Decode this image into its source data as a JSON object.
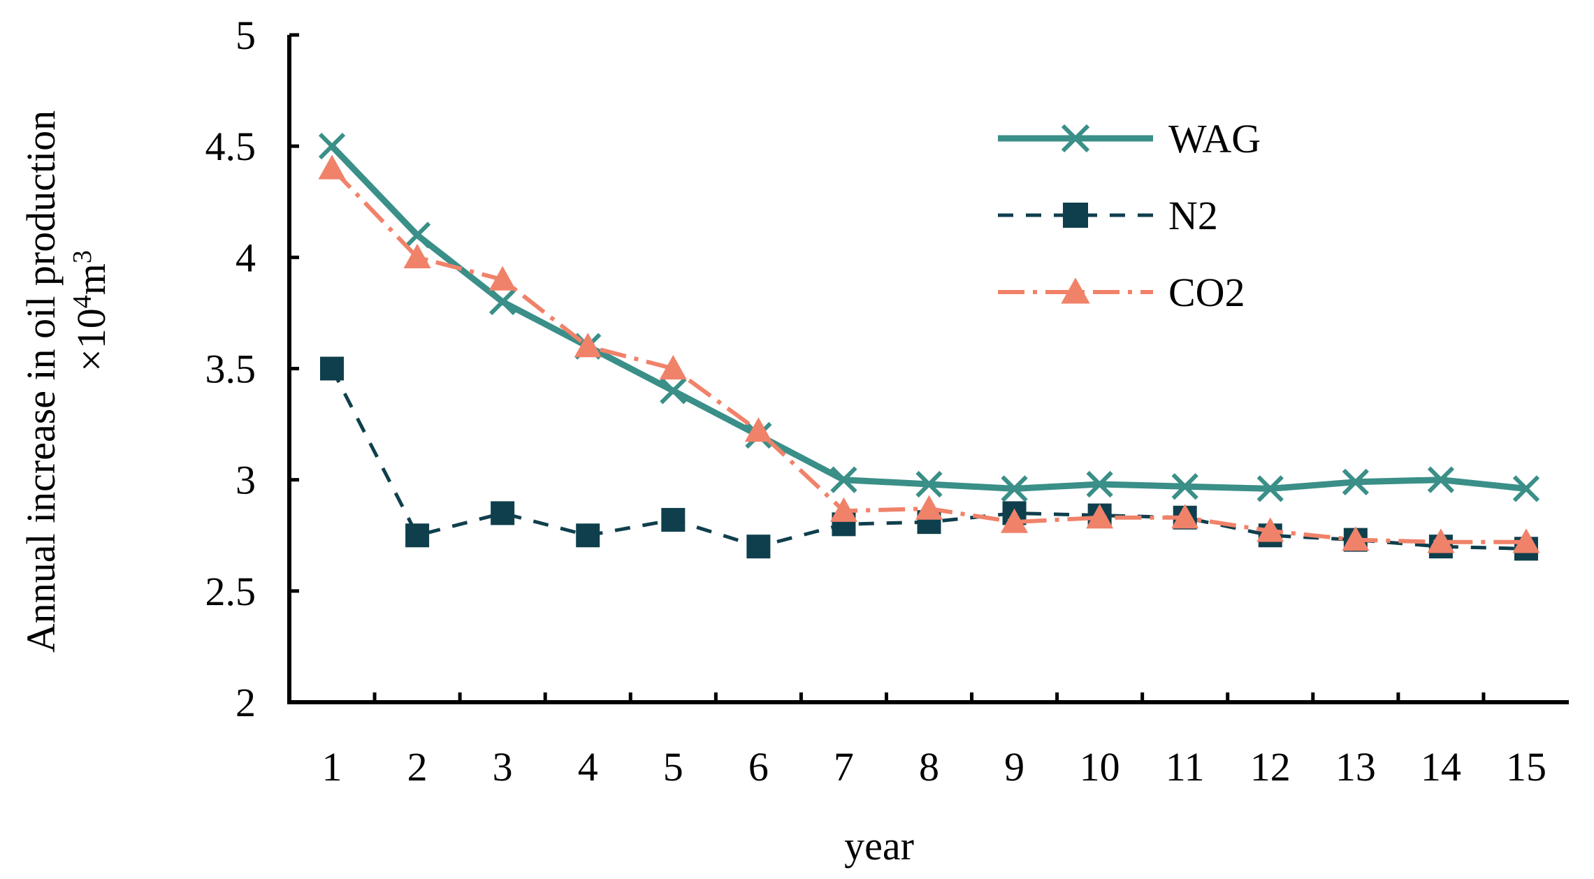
{
  "chart_data": {
    "type": "line",
    "title": "",
    "xlabel": "year",
    "ylabel": {
      "line1": "Annual increase in oil production",
      "line2_prefix": "×10",
      "line2_sup1": "4",
      "line2_mid": "m",
      "line2_sup2": "3"
    },
    "x": [
      1,
      2,
      3,
      4,
      5,
      6,
      7,
      8,
      9,
      10,
      11,
      12,
      13,
      14,
      15
    ],
    "ylim": [
      2,
      5
    ],
    "yticks": [
      "2",
      "2.5",
      "3",
      "3.5",
      "4",
      "4.5",
      "5"
    ],
    "legend_position": "top-right",
    "grid": false,
    "series": [
      {
        "name": "WAG",
        "color": "#3a8f88",
        "marker": "x",
        "line_style": "solid",
        "values": [
          4.5,
          4.1,
          3.8,
          3.6,
          3.4,
          3.2,
          3.0,
          2.98,
          2.96,
          2.98,
          2.97,
          2.96,
          2.99,
          3.0,
          2.96
        ]
      },
      {
        "name": "N2",
        "color": "#0f3f4c",
        "marker": "square",
        "line_style": "dashed",
        "values": [
          3.5,
          2.75,
          2.85,
          2.75,
          2.82,
          2.7,
          2.8,
          2.81,
          2.85,
          2.84,
          2.83,
          2.75,
          2.73,
          2.7,
          2.69
        ]
      },
      {
        "name": "CO2",
        "color": "#f0826a",
        "marker": "triangle",
        "line_style": "dashdot",
        "values": [
          4.4,
          4.0,
          3.9,
          3.6,
          3.5,
          3.22,
          2.86,
          2.87,
          2.81,
          2.83,
          2.83,
          2.77,
          2.73,
          2.72,
          2.72
        ]
      }
    ]
  }
}
